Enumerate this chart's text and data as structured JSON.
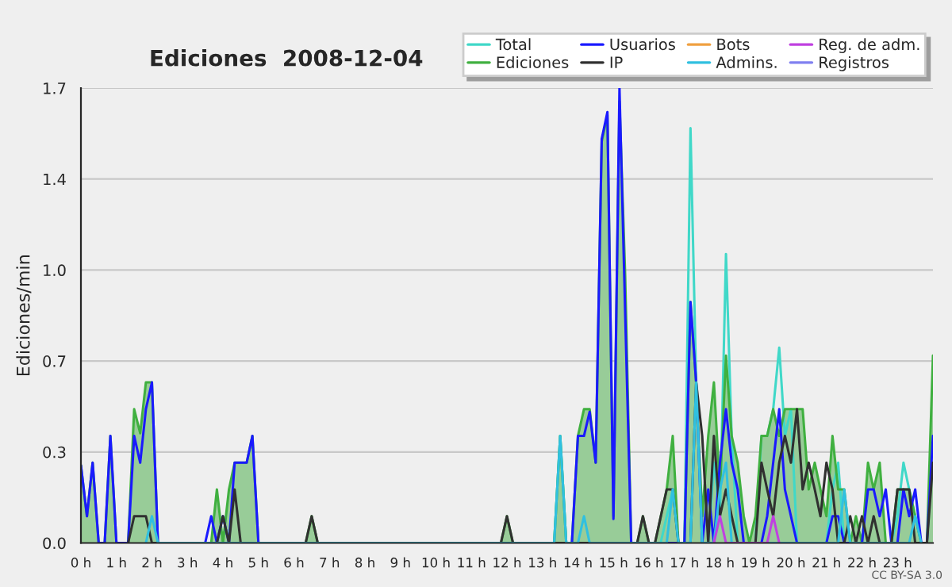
{
  "chart_data": {
    "type": "line",
    "title": "Ediciones  2008-12-04",
    "ylabel": "Ediciones/min",
    "xlim": [
      0,
      24
    ],
    "xticks": [
      {
        "value": 0,
        "label": "0 h"
      },
      {
        "value": 1,
        "label": "1 h"
      },
      {
        "value": 2,
        "label": "2 h"
      },
      {
        "value": 3,
        "label": "3 h"
      },
      {
        "value": 4,
        "label": "4 h"
      },
      {
        "value": 5,
        "label": "5 h"
      },
      {
        "value": 6,
        "label": "6 h"
      },
      {
        "value": 7,
        "label": "7 h"
      },
      {
        "value": 8,
        "label": "8 h"
      },
      {
        "value": 9,
        "label": "9 h"
      },
      {
        "value": 10,
        "label": "10 h"
      },
      {
        "value": 11,
        "label": "11 h"
      },
      {
        "value": 12,
        "label": "12 h"
      },
      {
        "value": 13,
        "label": "13 h"
      },
      {
        "value": 14,
        "label": "14 h"
      },
      {
        "value": 15,
        "label": "15 h"
      },
      {
        "value": 16,
        "label": "16 h"
      },
      {
        "value": 17,
        "label": "17 h"
      },
      {
        "value": 18,
        "label": "18 h"
      },
      {
        "value": 19,
        "label": "19 h"
      },
      {
        "value": 20,
        "label": "20 h"
      },
      {
        "value": 21,
        "label": "21 h"
      },
      {
        "value": 22,
        "label": "22 h"
      },
      {
        "value": 23,
        "label": "23 h"
      }
    ],
    "ylim": [
      0,
      1.7
    ],
    "yticks": [
      {
        "value": 0,
        "label": "0.0"
      },
      {
        "value": 0.34,
        "label": "0.3"
      },
      {
        "value": 0.68,
        "label": "0.7"
      },
      {
        "value": 1.02,
        "label": "1.0"
      },
      {
        "value": 1.36,
        "label": "1.4"
      },
      {
        "value": 1.7,
        "label": "1.7"
      }
    ],
    "grid": "y",
    "legend": "top right",
    "annotations": [
      "CC BY-SA 3.0"
    ],
    "series": [
      {
        "name": "Total",
        "color": "#40d8c8",
        "x": [
          13.33,
          13.5,
          13.67,
          16.33,
          16.5,
          16.67,
          16.83,
          17.0,
          17.17,
          17.33,
          17.5,
          17.67,
          17.83,
          18.0,
          18.17,
          18.33,
          18.5,
          19.0,
          19.17,
          19.33,
          19.5,
          19.67,
          19.83,
          20.0,
          20.17,
          21.0,
          21.17,
          21.33,
          21.5,
          22.83,
          23.0,
          23.17,
          23.33,
          23.5,
          23.67
        ],
        "values": [
          0,
          0.4,
          0,
          0,
          0.1,
          0.2,
          0,
          0,
          1.55,
          0.6,
          0,
          0,
          0.3,
          0.1,
          1.08,
          0.4,
          0,
          0,
          0.4,
          0.4,
          0.5,
          0.73,
          0.4,
          0.5,
          0,
          0,
          0.2,
          0.3,
          0,
          0,
          0.1,
          0.3,
          0.2,
          0.1,
          0
        ]
      },
      {
        "name": "Ediciones",
        "type": "area",
        "color": "#40b040",
        "x": [
          0,
          0.17,
          0.33,
          0.5,
          0.67,
          0.83,
          1.0,
          1.33,
          1.5,
          1.67,
          1.83,
          2.0,
          2.17,
          3.67,
          3.83,
          4.0,
          4.17,
          4.33,
          4.5,
          4.67,
          4.83,
          5.0,
          6.33,
          6.5,
          6.67,
          11.83,
          12.0,
          12.17,
          13.33,
          13.5,
          13.67,
          13.83,
          14.0,
          14.17,
          14.33,
          14.5,
          14.67,
          14.83,
          15.0,
          15.17,
          15.33,
          15.5,
          15.67,
          15.83,
          16.0,
          16.17,
          16.5,
          16.67,
          16.83,
          17.0,
          17.17,
          17.33,
          17.5,
          17.67,
          17.83,
          18.0,
          18.17,
          18.33,
          18.5,
          18.67,
          18.83,
          19.0,
          19.17,
          19.33,
          19.5,
          19.67,
          19.83,
          20.0,
          20.17,
          20.33,
          20.5,
          20.67,
          20.83,
          21.0,
          21.17,
          21.33,
          21.5,
          21.67,
          21.83,
          22.0,
          22.17,
          22.33,
          22.5,
          22.67,
          22.83,
          23.0,
          23.17,
          23.33,
          23.5,
          23.67,
          23.83,
          24.0
        ],
        "values": [
          0.29,
          0.1,
          0.3,
          0,
          0,
          0.4,
          0,
          0,
          0.5,
          0.41,
          0.6,
          0.6,
          0,
          0,
          0.2,
          0,
          0.2,
          0.3,
          0.3,
          0.3,
          0.4,
          0,
          0,
          0.1,
          0,
          0,
          0.1,
          0,
          0,
          0.4,
          0,
          0,
          0.4,
          0.5,
          0.5,
          0.3,
          1.5,
          1.6,
          0.1,
          1.65,
          1.0,
          0,
          0,
          0.1,
          0,
          0,
          0.2,
          0.4,
          0,
          0,
          0.9,
          0.6,
          0.1,
          0.4,
          0.6,
          0.2,
          0.7,
          0.4,
          0.3,
          0.1,
          0,
          0.1,
          0.4,
          0.4,
          0.5,
          0.4,
          0.5,
          0.5,
          0.5,
          0.5,
          0.2,
          0.3,
          0.2,
          0.1,
          0.4,
          0.2,
          0.2,
          0,
          0.1,
          0,
          0.3,
          0.2,
          0.3,
          0,
          0,
          0.2,
          0.2,
          0.2,
          0.1,
          0,
          0,
          0.7
        ]
      },
      {
        "name": "Usuarios",
        "color": "#1a1aff",
        "x": [
          0,
          0.17,
          0.33,
          0.5,
          0.67,
          0.83,
          1.0,
          1.33,
          1.5,
          1.67,
          1.83,
          2.0,
          2.17,
          3.5,
          3.67,
          3.83,
          4.0,
          4.17,
          4.33,
          4.5,
          4.67,
          4.83,
          5.0,
          13.83,
          14.0,
          14.17,
          14.33,
          14.5,
          14.67,
          14.83,
          15.0,
          15.17,
          15.33,
          15.5,
          17.0,
          17.17,
          17.33,
          17.5,
          17.67,
          17.83,
          18.0,
          18.17,
          18.33,
          18.5,
          18.67,
          19.17,
          19.33,
          19.5,
          19.67,
          19.83,
          20.0,
          20.17,
          21.0,
          21.17,
          21.33,
          21.5,
          22.0,
          22.17,
          22.33,
          22.5,
          22.67,
          22.83,
          23.0,
          23.17,
          23.33,
          23.5,
          23.67,
          23.83,
          24.0
        ],
        "values": [
          0.29,
          0.1,
          0.3,
          0,
          0,
          0.4,
          0,
          0,
          0.4,
          0.3,
          0.5,
          0.6,
          0,
          0,
          0.1,
          0,
          0.1,
          0,
          0.3,
          0.3,
          0.3,
          0.4,
          0,
          0,
          0.4,
          0.4,
          0.49,
          0.3,
          1.51,
          1.61,
          0.09,
          1.7,
          0.86,
          0,
          0,
          0.9,
          0.6,
          0,
          0.2,
          0,
          0.3,
          0.5,
          0.3,
          0.2,
          0,
          0,
          0.1,
          0.3,
          0.5,
          0.2,
          0.1,
          0,
          0,
          0.1,
          0.1,
          0,
          0,
          0.2,
          0.2,
          0.1,
          0.2,
          0,
          0,
          0.2,
          0.1,
          0.2,
          0,
          0,
          0.4
        ]
      },
      {
        "name": "IP",
        "color": "#303030",
        "x": [
          1.33,
          1.5,
          1.83,
          2.0,
          3.83,
          4.0,
          4.17,
          4.33,
          4.5,
          6.33,
          6.5,
          6.67,
          11.83,
          12.0,
          12.17,
          15.67,
          15.83,
          16.0,
          16.17,
          16.5,
          16.67,
          16.83,
          17.17,
          17.33,
          17.5,
          17.67,
          17.83,
          18.0,
          18.17,
          18.33,
          18.5,
          19.0,
          19.17,
          19.33,
          19.5,
          19.67,
          19.83,
          20.0,
          20.17,
          20.33,
          20.5,
          20.67,
          20.83,
          21.0,
          21.17,
          21.33,
          21.5,
          21.67,
          21.83,
          22.0,
          22.17,
          22.33,
          22.5,
          22.83,
          23.0,
          23.17,
          23.33,
          23.5,
          23.83,
          24.0
        ],
        "values": [
          0,
          0.1,
          0.1,
          0,
          0,
          0.1,
          0,
          0.2,
          0,
          0,
          0.1,
          0,
          0,
          0.1,
          0,
          0,
          0.1,
          0,
          0,
          0.2,
          0.2,
          0,
          0,
          0.6,
          0.4,
          0,
          0.4,
          0.1,
          0.2,
          0.1,
          0,
          0,
          0.3,
          0.2,
          0.1,
          0.3,
          0.4,
          0.3,
          0.5,
          0.2,
          0.3,
          0.2,
          0.1,
          0.3,
          0.2,
          0,
          0,
          0.1,
          0,
          0.1,
          0,
          0.1,
          0,
          0,
          0.2,
          0.2,
          0.2,
          0,
          0,
          0.3
        ]
      },
      {
        "name": "Bots",
        "color": "#f0a040"
      },
      {
        "name": "Admins.",
        "color": "#30c0e0",
        "x": [
          1.83,
          2.0,
          2.17,
          13.33,
          13.5,
          13.67,
          14.0,
          14.17,
          14.33,
          16.5,
          16.67,
          16.83,
          17.17,
          17.33,
          17.5,
          17.83,
          18.0,
          18.17,
          18.33,
          21.33,
          21.5,
          21.67,
          23.33,
          23.5,
          23.67
        ],
        "values": [
          0,
          0.1,
          0,
          0,
          0.4,
          0,
          0,
          0.1,
          0,
          0,
          0.2,
          0,
          0,
          0.6,
          0,
          0,
          0.2,
          0.3,
          0,
          0,
          0.2,
          0,
          0,
          0.1,
          0
        ]
      },
      {
        "name": "Reg. de adm.",
        "color": "#c040e0",
        "x": [
          17.83,
          18.0,
          18.17,
          19.33,
          19.5,
          19.67
        ],
        "values": [
          0,
          0.1,
          0,
          0,
          0.1,
          0
        ]
      },
      {
        "name": "Registros",
        "color": "#8080f0"
      }
    ]
  }
}
